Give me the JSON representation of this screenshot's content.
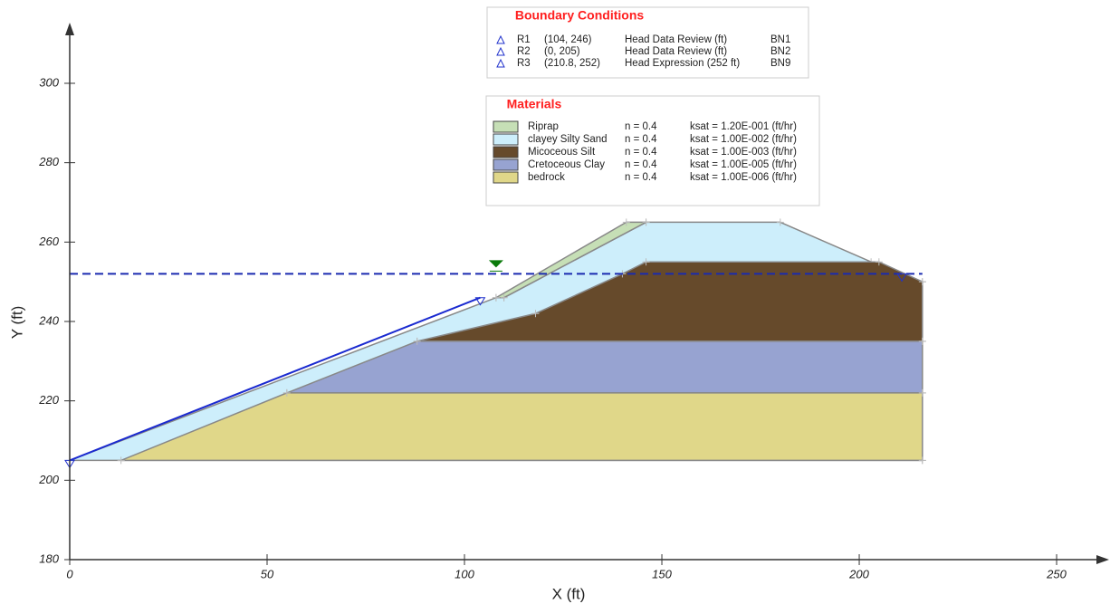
{
  "axes": {
    "xlabel": "X (ft)",
    "ylabel": "Y (ft)",
    "xlim": [
      0,
      261
    ],
    "ylim": [
      180,
      313
    ],
    "xticks": [
      0,
      50,
      100,
      150,
      200,
      250
    ],
    "yticks": [
      180,
      200,
      220,
      240,
      260,
      280,
      300
    ]
  },
  "boundary_conditions": {
    "title": "Boundary Conditions",
    "rows": [
      {
        "name": "R1",
        "point": "(104, 246)",
        "x": 104,
        "y": 246,
        "type": "Head Data Review (ft)",
        "id": "BN1"
      },
      {
        "name": "R2",
        "point": "(0, 205)",
        "x": 0,
        "y": 205,
        "type": "Head Data Review (ft)",
        "id": "BN2"
      },
      {
        "name": "R3",
        "point": "(210.8, 252)",
        "x": 210.8,
        "y": 252,
        "type": "Head Expression (252 ft)",
        "id": "BN9"
      }
    ]
  },
  "materials": {
    "title": "Materials",
    "rows": [
      {
        "name": "Riprap",
        "n": "n = 0.4",
        "ksat": "ksat = 1.20E-001 (ft/hr)",
        "color": "#c6dfb6"
      },
      {
        "name": "clayey Silty Sand",
        "n": "n = 0.4",
        "ksat": "ksat = 1.00E-002 (ft/hr)",
        "color": "#cdeefb"
      },
      {
        "name": "Micoceous Silt",
        "n": "n = 0.4",
        "ksat": "ksat = 1.00E-003 (ft/hr)",
        "color": "#664a2b"
      },
      {
        "name": "Cretoceous Clay",
        "n": "n = 0.4",
        "ksat": "ksat = 1.00E-005 (ft/hr)",
        "color": "#97a3d1"
      },
      {
        "name": "bedrock",
        "n": "n = 0.4",
        "ksat": "ksat = 1.00E-006 (ft/hr)",
        "color": "#e0d789"
      }
    ]
  },
  "regions": [
    {
      "color": "#cdeefb",
      "points": [
        [
          0,
          205
        ],
        [
          216,
          205
        ],
        [
          216,
          250
        ],
        [
          203,
          255
        ],
        [
          180,
          265
        ],
        [
          146,
          265
        ],
        [
          110,
          246
        ],
        [
          108,
          246
        ]
      ]
    },
    {
      "color": "#664a2b",
      "points": [
        [
          88,
          235
        ],
        [
          118,
          242
        ],
        [
          140,
          252
        ],
        [
          146,
          255
        ],
        [
          205,
          255
        ],
        [
          216,
          250
        ],
        [
          216,
          235
        ]
      ]
    },
    {
      "color": "#97a3d1",
      "points": [
        [
          55,
          222
        ],
        [
          88,
          235
        ],
        [
          216,
          235
        ],
        [
          216,
          222
        ]
      ]
    },
    {
      "color": "#e0d789",
      "points": [
        [
          13,
          205
        ],
        [
          55,
          222
        ],
        [
          216,
          222
        ],
        [
          216,
          205
        ]
      ]
    },
    {
      "color": "#c6dfb6",
      "points": [
        [
          108,
          246
        ],
        [
          110,
          246
        ],
        [
          146,
          265
        ],
        [
          141,
          265
        ]
      ]
    }
  ],
  "water_table": {
    "y": 252,
    "x": [
      0,
      216
    ]
  },
  "boundary_line": {
    "x": [
      0,
      104
    ],
    "y": [
      205,
      246
    ]
  }
}
